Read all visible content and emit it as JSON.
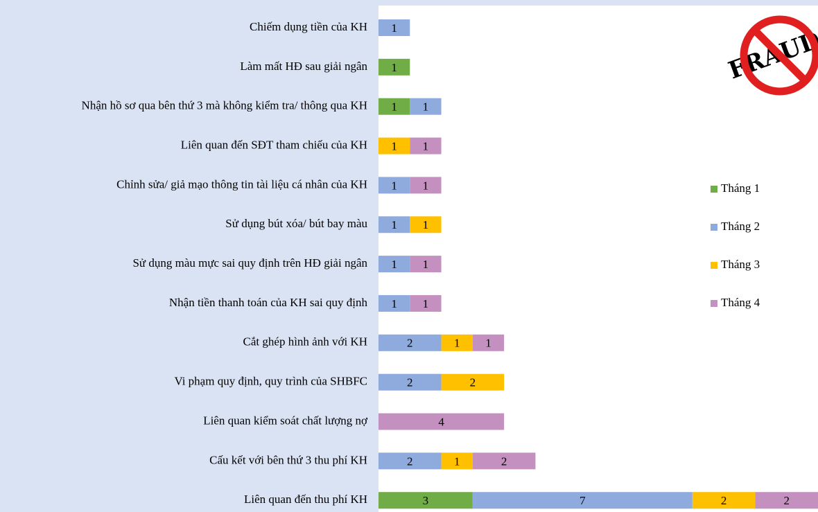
{
  "chart_data": {
    "type": "stacked-barh",
    "categories": [
      "Chiếm dụng tiền của KH",
      "Làm mất HĐ sau giải ngân",
      "Nhận hồ sơ qua bên thứ 3 mà không kiểm tra/ thông qua KH",
      "Liên quan đến SĐT tham chiếu của KH",
      "Chỉnh sửa/ giả mạo thông tin tài liệu cá nhân của KH",
      "Sử dụng bút xóa/ bút bay màu",
      "Sử dụng màu mực sai quy định trên HĐ giải ngân",
      "Nhận tiền thanh toán của KH sai quy định",
      "Cắt ghép hình ảnh với KH",
      "Vi phạm quy định, quy trình của SHBFC",
      "Liên quan kiểm soát chất lượng nợ",
      "Cấu kết với bên thứ 3 thu phí KH",
      "Liên quan đến thu phí KH"
    ],
    "series": [
      {
        "name": "Tháng 1",
        "color": "#70ad47",
        "values": [
          null,
          1,
          1,
          null,
          null,
          null,
          null,
          null,
          null,
          null,
          null,
          null,
          3
        ]
      },
      {
        "name": "Tháng 2",
        "color": "#8faadc",
        "values": [
          1,
          null,
          1,
          null,
          1,
          1,
          1,
          1,
          2,
          2,
          null,
          2,
          7
        ]
      },
      {
        "name": "Tháng 3",
        "color": "#ffc000",
        "values": [
          null,
          null,
          null,
          1,
          null,
          1,
          null,
          null,
          1,
          2,
          null,
          1,
          2
        ]
      },
      {
        "name": "Tháng 4",
        "color": "#c490c0",
        "values": [
          null,
          null,
          null,
          1,
          1,
          null,
          1,
          1,
          1,
          null,
          4,
          2,
          2
        ]
      }
    ],
    "legend": "right",
    "logo_text": "FRAUD"
  }
}
